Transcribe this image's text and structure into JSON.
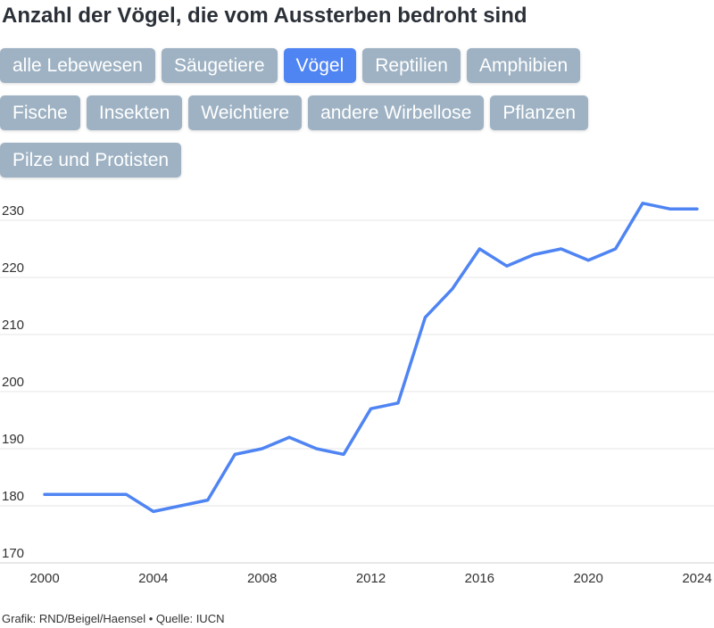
{
  "title": "Anzahl der Vögel, die vom Aussterben bedroht sind",
  "filters": [
    [
      "alle Lebewesen",
      "Säugetiere",
      "Vögel",
      "Reptilien",
      "Amphibien"
    ],
    [
      "Fische",
      "Insekten",
      "Weichtiere",
      "andere Wirbellose",
      "Pflanzen"
    ],
    [
      "Pilze und Protisten"
    ]
  ],
  "active_filter": "Vögel",
  "colors": {
    "line": "#4f84f3",
    "button": "#9eb2c3",
    "button_active": "#4f84f3"
  },
  "source": "Grafik: RND/Beigel/Haensel • Quelle: IUCN",
  "chart_data": {
    "type": "line",
    "title": "",
    "xlabel": "",
    "ylabel": "",
    "x": [
      2000,
      2001,
      2002,
      2003,
      2004,
      2005,
      2006,
      2007,
      2008,
      2009,
      2010,
      2011,
      2012,
      2013,
      2014,
      2015,
      2016,
      2017,
      2018,
      2019,
      2020,
      2021,
      2022,
      2023,
      2024
    ],
    "series": [
      {
        "values": [
          182,
          182,
          182,
          182,
          179,
          180,
          181,
          189,
          190,
          192,
          190,
          189,
          197,
          198,
          213,
          218,
          225,
          222,
          224,
          225,
          223,
          225,
          233,
          232,
          232
        ]
      }
    ],
    "xlim": [
      2000,
      2024
    ],
    "ylim": [
      170,
      230
    ],
    "xticks": [
      2000,
      2004,
      2008,
      2012,
      2016,
      2020,
      2024
    ],
    "yticks": [
      170,
      180,
      190,
      200,
      210,
      220,
      230
    ],
    "grid": true,
    "legend": "none"
  }
}
